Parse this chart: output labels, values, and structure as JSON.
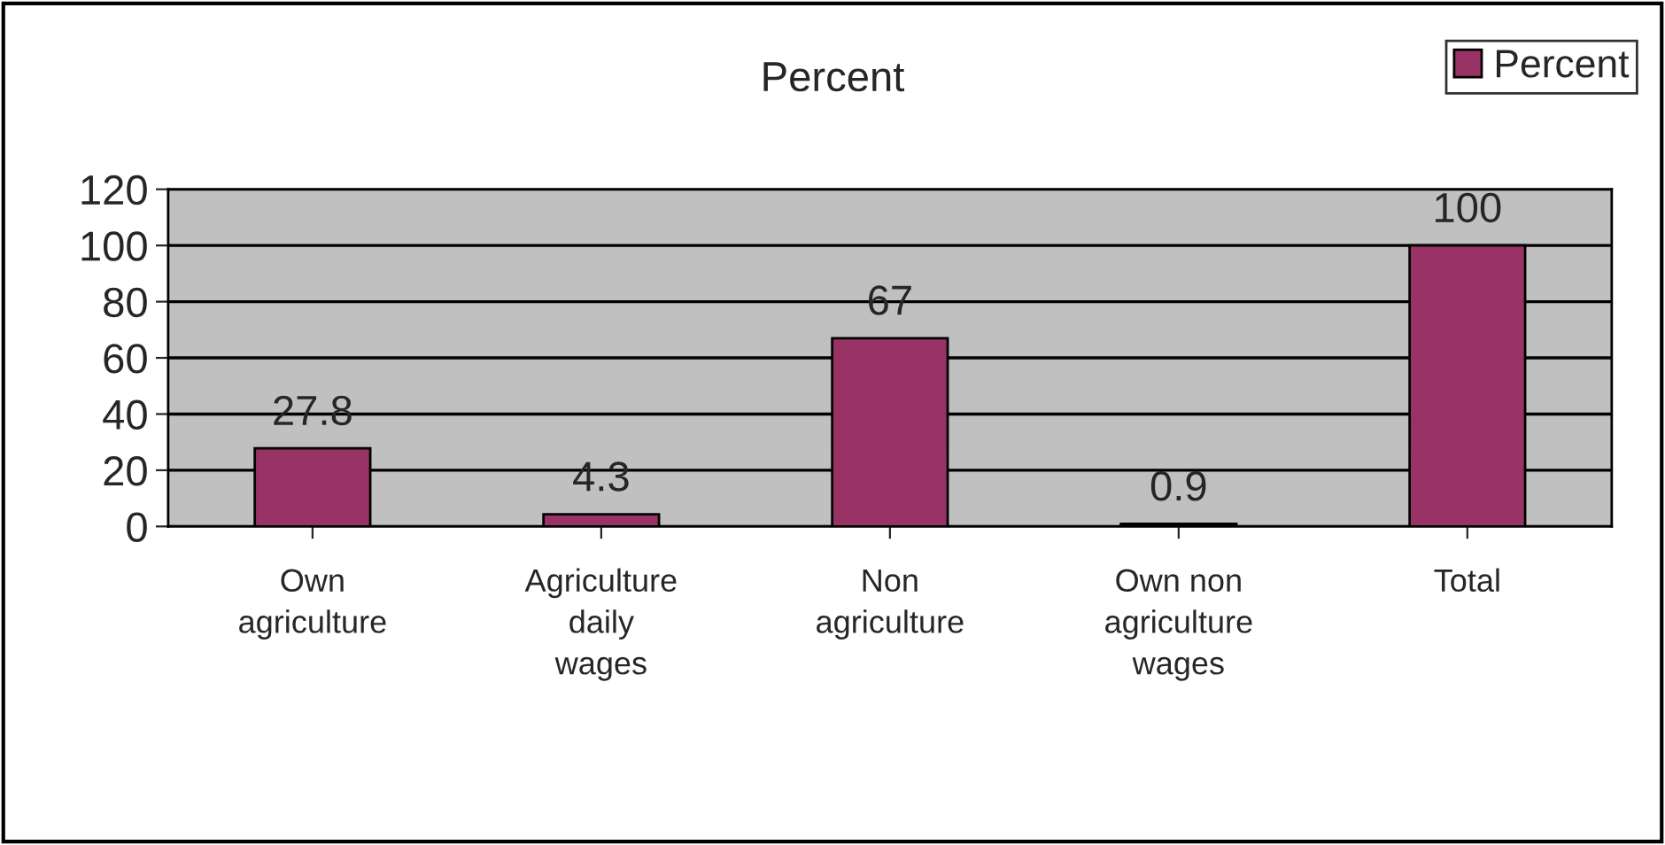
{
  "chart_data": {
    "type": "bar",
    "title": "Percent",
    "categories": [
      "Own\nagriculture",
      "Agriculture\ndaily\nwages",
      "Non\nagriculture",
      "Own non\nagriculture\nwages",
      "Total"
    ],
    "series": [
      {
        "name": "Percent",
        "color": "#993366",
        "values": [
          27.8,
          4.3,
          67,
          0.9,
          100
        ]
      }
    ],
    "ylim": [
      0,
      120
    ],
    "yticks": [
      0,
      20,
      40,
      60,
      80,
      100,
      120
    ],
    "grid": "y",
    "legend": "top right",
    "data_labels": true
  }
}
